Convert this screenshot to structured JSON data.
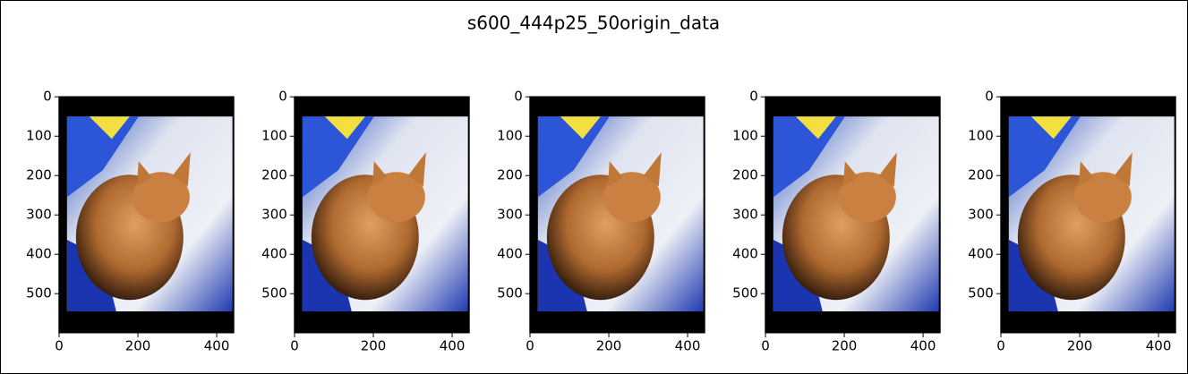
{
  "title": "s600_444p25_50origin_data",
  "chart_data": [
    {
      "type": "image",
      "xlim": [
        -0.5,
        443.5
      ],
      "ylim": [
        599.5,
        -0.5
      ],
      "xticks": [
        0,
        200,
        400
      ],
      "yticks": [
        0,
        100,
        200,
        300,
        400,
        500
      ]
    },
    {
      "type": "image",
      "xlim": [
        -0.5,
        443.5
      ],
      "ylim": [
        599.5,
        -0.5
      ],
      "xticks": [
        0,
        200,
        400
      ],
      "yticks": [
        0,
        100,
        200,
        300,
        400,
        500
      ]
    },
    {
      "type": "image",
      "xlim": [
        -0.5,
        443.5
      ],
      "ylim": [
        599.5,
        -0.5
      ],
      "xticks": [
        0,
        200,
        400
      ],
      "yticks": [
        0,
        100,
        200,
        300,
        400,
        500
      ]
    },
    {
      "type": "image",
      "xlim": [
        -0.5,
        443.5
      ],
      "ylim": [
        599.5,
        -0.5
      ],
      "xticks": [
        0,
        200,
        400
      ],
      "yticks": [
        0,
        100,
        200,
        300,
        400,
        500
      ]
    },
    {
      "type": "image",
      "xlim": [
        -0.5,
        443.5
      ],
      "ylim": [
        599.5,
        -0.5
      ],
      "xticks": [
        0,
        200,
        400
      ],
      "yticks": [
        0,
        100,
        200,
        300,
        400,
        500
      ]
    }
  ]
}
